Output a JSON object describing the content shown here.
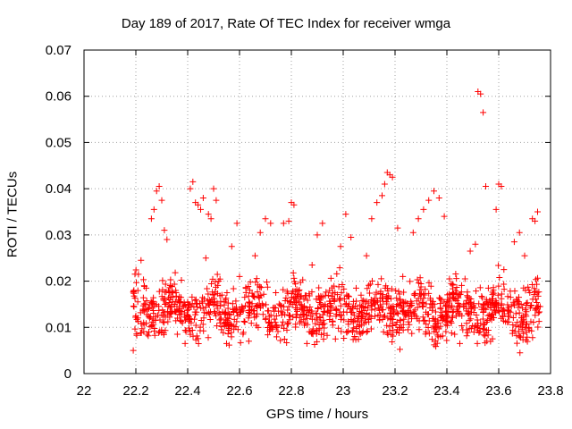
{
  "chart_data": {
    "type": "scatter",
    "title": "Day 189 of 2017, Rate Of TEC Index for receiver wmga",
    "xlabel": "GPS time / hours",
    "ylabel": "ROTI / TECUs",
    "xlim": [
      22,
      23.8
    ],
    "ylim": [
      0,
      0.07
    ],
    "xticks": [
      "22",
      "22.2",
      "22.4",
      "22.6",
      "22.8",
      "23",
      "23.2",
      "23.4",
      "23.6",
      "23.8"
    ],
    "yticks": [
      "0",
      "0.01",
      "0.02",
      "0.03",
      "0.04",
      "0.05",
      "0.06",
      "0.07"
    ],
    "grid": true,
    "marker": "+",
    "color": "#ff0000",
    "series": [
      {
        "name": "ROTI",
        "points": [
          [
            22.19,
            0.005
          ],
          [
            22.2,
            0.0125
          ],
          [
            22.21,
            0.0215
          ],
          [
            22.22,
            0.0245
          ],
          [
            22.23,
            0.011
          ],
          [
            22.24,
            0.0185
          ],
          [
            22.25,
            0.009
          ],
          [
            22.26,
            0.0335
          ],
          [
            22.27,
            0.0355
          ],
          [
            22.28,
            0.0395
          ],
          [
            22.29,
            0.0405
          ],
          [
            22.3,
            0.0375
          ],
          [
            22.31,
            0.031
          ],
          [
            22.32,
            0.029
          ],
          [
            22.33,
            0.0175
          ],
          [
            22.35,
            0.0135
          ],
          [
            22.36,
            0.0085
          ],
          [
            22.38,
            0.011
          ],
          [
            22.39,
            0.0065
          ],
          [
            22.4,
            0.0155
          ],
          [
            22.41,
            0.04
          ],
          [
            22.42,
            0.0415
          ],
          [
            22.43,
            0.037
          ],
          [
            22.44,
            0.0365
          ],
          [
            22.45,
            0.0355
          ],
          [
            22.46,
            0.038
          ],
          [
            22.47,
            0.025
          ],
          [
            22.48,
            0.0345
          ],
          [
            22.49,
            0.0335
          ],
          [
            22.5,
            0.04
          ],
          [
            22.51,
            0.0375
          ],
          [
            22.52,
            0.02
          ],
          [
            22.53,
            0.0095
          ],
          [
            22.54,
            0.011
          ],
          [
            22.55,
            0.0065
          ],
          [
            22.57,
            0.0275
          ],
          [
            22.59,
            0.0325
          ],
          [
            22.6,
            0.021
          ],
          [
            22.62,
            0.0165
          ],
          [
            22.64,
            0.013
          ],
          [
            22.66,
            0.0255
          ],
          [
            22.68,
            0.0305
          ],
          [
            22.7,
            0.0335
          ],
          [
            22.72,
            0.0325
          ],
          [
            22.74,
            0.0175
          ],
          [
            22.75,
            0.0135
          ],
          [
            22.77,
            0.0325
          ],
          [
            22.79,
            0.033
          ],
          [
            22.8,
            0.037
          ],
          [
            22.81,
            0.0365
          ],
          [
            22.83,
            0.0155
          ],
          [
            22.85,
            0.0105
          ],
          [
            22.86,
            0.0065
          ],
          [
            22.88,
            0.0235
          ],
          [
            22.9,
            0.03
          ],
          [
            22.92,
            0.0325
          ],
          [
            22.94,
            0.0145
          ],
          [
            22.96,
            0.0105
          ],
          [
            22.97,
            0.0075
          ],
          [
            22.99,
            0.0275
          ],
          [
            23.01,
            0.0345
          ],
          [
            23.03,
            0.0295
          ],
          [
            23.05,
            0.0185
          ],
          [
            23.07,
            0.0125
          ],
          [
            23.09,
            0.0255
          ],
          [
            23.11,
            0.0335
          ],
          [
            23.13,
            0.037
          ],
          [
            23.15,
            0.0385
          ],
          [
            23.16,
            0.041
          ],
          [
            23.17,
            0.0435
          ],
          [
            23.18,
            0.043
          ],
          [
            23.19,
            0.0425
          ],
          [
            23.21,
            0.0315
          ],
          [
            23.23,
            0.021
          ],
          [
            23.25,
            0.0095
          ],
          [
            23.27,
            0.0305
          ],
          [
            23.29,
            0.0335
          ],
          [
            23.31,
            0.0355
          ],
          [
            23.33,
            0.0375
          ],
          [
            23.35,
            0.0395
          ],
          [
            23.37,
            0.038
          ],
          [
            23.39,
            0.034
          ],
          [
            23.41,
            0.0205
          ],
          [
            23.43,
            0.0085
          ],
          [
            23.45,
            0.0065
          ],
          [
            23.47,
            0.0205
          ],
          [
            23.49,
            0.0265
          ],
          [
            23.51,
            0.028
          ],
          [
            23.52,
            0.061
          ],
          [
            23.53,
            0.0605
          ],
          [
            23.54,
            0.0565
          ],
          [
            23.55,
            0.0405
          ],
          [
            23.56,
            0.0185
          ],
          [
            23.57,
            0.0125
          ],
          [
            23.59,
            0.0355
          ],
          [
            23.6,
            0.041
          ],
          [
            23.61,
            0.0405
          ],
          [
            23.62,
            0.0225
          ],
          [
            23.64,
            0.0135
          ],
          [
            23.66,
            0.0285
          ],
          [
            23.68,
            0.0305
          ],
          [
            23.7,
            0.0255
          ],
          [
            23.72,
            0.0175
          ],
          [
            23.73,
            0.0335
          ],
          [
            23.74,
            0.033
          ],
          [
            23.75,
            0.035
          ],
          [
            23.76,
            0.0145
          ]
        ],
        "band": {
          "x_range": [
            22.19,
            23.76
          ],
          "y_center": 0.0135,
          "y_spread": 0.0065,
          "count": 1300
        }
      }
    ]
  }
}
